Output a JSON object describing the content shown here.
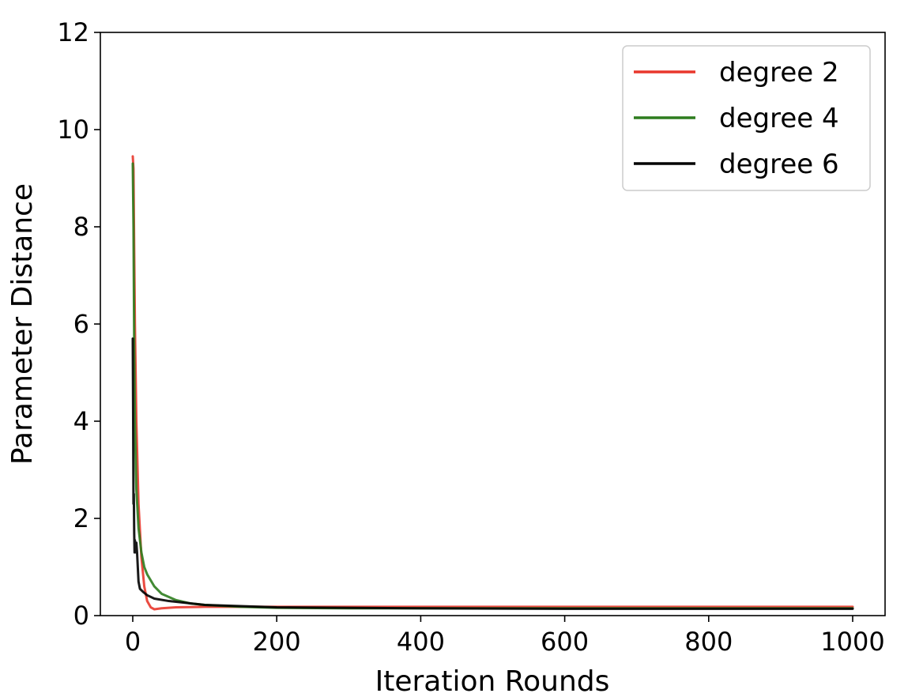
{
  "chart_data": {
    "type": "line",
    "title": "",
    "xlabel": "Iteration Rounds",
    "ylabel": "Parameter Distance",
    "xlim": [
      -45,
      1045
    ],
    "ylim": [
      0,
      12
    ],
    "xticks": [
      0,
      200,
      400,
      600,
      800,
      1000
    ],
    "yticks": [
      0,
      2,
      4,
      6,
      8,
      10,
      12
    ],
    "grid": false,
    "legend_position": "top-right",
    "series": [
      {
        "name": "degree 2",
        "color": "#e8372c",
        "x": [
          0,
          1,
          2,
          3,
          5,
          8,
          12,
          16,
          20,
          25,
          30,
          40,
          60,
          100,
          200,
          400,
          600,
          800,
          1000
        ],
        "y": [
          9.45,
          9.2,
          7.5,
          6.0,
          4.0,
          2.3,
          1.2,
          0.6,
          0.3,
          0.17,
          0.13,
          0.15,
          0.17,
          0.18,
          0.18,
          0.18,
          0.18,
          0.18,
          0.18
        ]
      },
      {
        "name": "degree 4",
        "color": "#2e7d1e",
        "x": [
          0,
          1,
          2,
          3,
          5,
          8,
          12,
          16,
          20,
          30,
          40,
          60,
          80,
          100,
          150,
          200,
          300,
          400,
          600,
          800,
          1000
        ],
        "y": [
          9.3,
          8.0,
          5.5,
          4.0,
          2.6,
          1.8,
          1.3,
          1.0,
          0.85,
          0.6,
          0.45,
          0.32,
          0.25,
          0.22,
          0.18,
          0.16,
          0.15,
          0.15,
          0.15,
          0.15,
          0.15
        ]
      },
      {
        "name": "degree 6",
        "color": "#000000",
        "x": [
          0,
          0.5,
          1,
          1.5,
          2,
          2.5,
          3,
          4,
          5,
          6,
          7,
          8,
          10,
          15,
          20,
          30,
          50,
          100,
          200,
          400,
          600,
          800,
          1000
        ],
        "y": [
          5.7,
          4.2,
          2.3,
          2.5,
          1.7,
          1.3,
          1.55,
          1.3,
          1.5,
          1.3,
          1.0,
          0.7,
          0.55,
          0.48,
          0.42,
          0.35,
          0.3,
          0.22,
          0.17,
          0.15,
          0.14,
          0.14,
          0.14
        ]
      }
    ]
  }
}
